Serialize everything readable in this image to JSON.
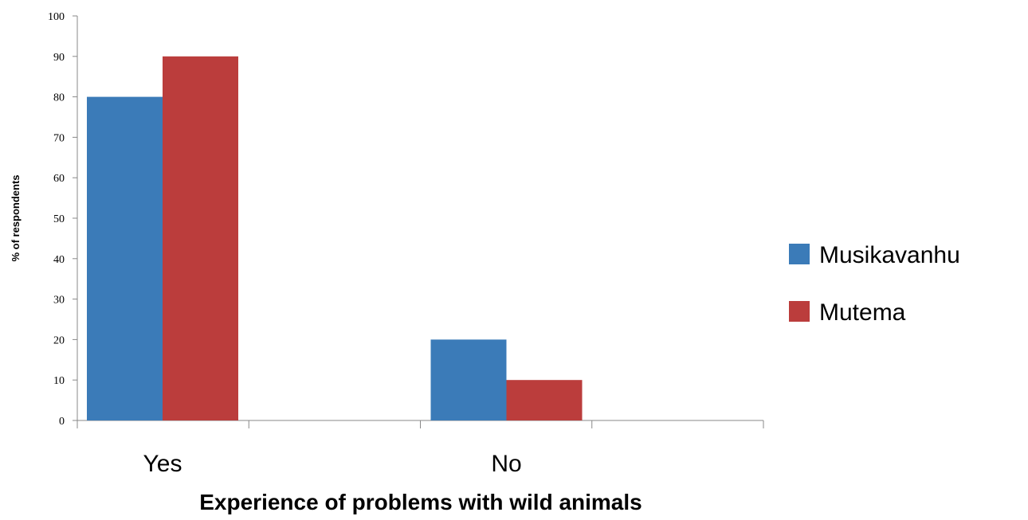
{
  "chart_data": {
    "type": "bar",
    "title": "",
    "xlabel": "Experience of problems with wild animals",
    "ylabel": "% of respondents",
    "categories": [
      "Yes",
      "No"
    ],
    "series": [
      {
        "name": "Musikavanhu",
        "values": [
          80,
          20
        ],
        "color": "#3b7bb8"
      },
      {
        "name": "Mutema",
        "values": [
          90,
          10
        ],
        "color": "#bb3d3c"
      }
    ],
    "ylim": [
      0,
      100
    ],
    "yticks": [
      0,
      10,
      20,
      30,
      40,
      50,
      60,
      70,
      80,
      90,
      100
    ],
    "grid": false,
    "legend": "right"
  }
}
